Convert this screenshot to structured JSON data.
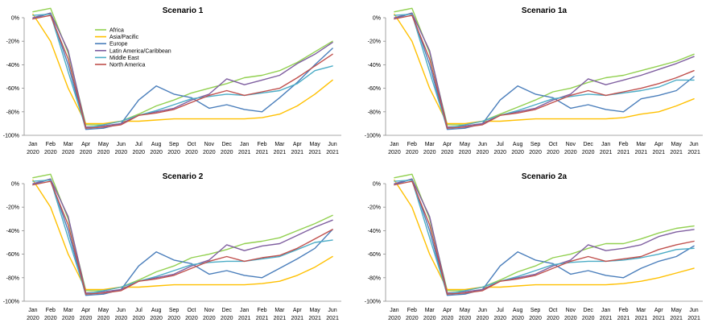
{
  "chart_data": [
    {
      "type": "line",
      "title": "Scenario 1",
      "categories": [
        "Jan 2020",
        "Feb 2020",
        "Mar 2020",
        "Apr 2020",
        "May 2020",
        "Jun 2020",
        "Jul 2020",
        "Aug 2020",
        "Sep 2020",
        "Oct 2020",
        "Nov 2020",
        "Dec 2020",
        "Jan 2021",
        "Feb 2021",
        "Mar 2021",
        "Apr 2021",
        "May 2021",
        "Jun 2021"
      ],
      "ylim": [
        -100,
        0
      ],
      "yticks": [
        "0%",
        "-20%",
        "-40%",
        "-60%",
        "-80%",
        "-100%"
      ],
      "legend": "top-left",
      "series": [
        {
          "name": "Africa",
          "color": "#92d050",
          "values": [
            5,
            8,
            -30,
            -91,
            -91,
            -88,
            -82,
            -75,
            -70,
            -64,
            -60,
            -56,
            -51,
            -49,
            -45,
            -38,
            -29,
            -20
          ]
        },
        {
          "name": "Asia/Pacific",
          "color": "#ffc000",
          "values": [
            3,
            -20,
            -60,
            -90,
            -90,
            -88,
            -88,
            -87,
            -86,
            -86,
            -86,
            -86,
            -86,
            -85,
            -82,
            -75,
            -65,
            -53
          ]
        },
        {
          "name": "Europe",
          "color": "#4a7ebb",
          "values": [
            -1,
            4,
            -40,
            -95,
            -94,
            -90,
            -70,
            -58,
            -65,
            -68,
            -77,
            -74,
            -78,
            -80,
            -68,
            -55,
            -40,
            -26
          ]
        },
        {
          "name": "Latin America/Caribbean",
          "color": "#7f5fa0",
          "values": [
            0,
            4,
            -28,
            -93,
            -92,
            -90,
            -83,
            -80,
            -77,
            -70,
            -65,
            -52,
            -57,
            -53,
            -49,
            -39,
            -31,
            -21
          ]
        },
        {
          "name": "Middle East",
          "color": "#4bacc6",
          "values": [
            2,
            3,
            -46,
            -94,
            -91,
            -88,
            -83,
            -79,
            -74,
            -69,
            -67,
            -65,
            -66,
            -64,
            -62,
            -56,
            -45,
            -41
          ]
        },
        {
          "name": "North America",
          "color": "#c0504d",
          "values": [
            -1,
            2,
            -35,
            -94,
            -93,
            -91,
            -83,
            -81,
            -78,
            -72,
            -66,
            -62,
            -66,
            -63,
            -60,
            -51,
            -41,
            -31
          ]
        }
      ]
    },
    {
      "type": "line",
      "title": "Scenario 1a",
      "categories": [
        "Jan 2020",
        "Feb 2020",
        "Mar 2020",
        "Apr 2020",
        "May 2020",
        "Jun 2020",
        "Jul 2020",
        "Aug 2020",
        "Sep 2020",
        "Oct 2020",
        "Nov 2020",
        "Dec 2020",
        "Jan 2021",
        "Feb 2021",
        "Mar 2021",
        "Apr 2021",
        "May 2021",
        "Jun 2021"
      ],
      "ylim": [
        -100,
        0
      ],
      "yticks": [
        "0%",
        "-20%",
        "-40%",
        "-60%",
        "-80%",
        "-100%"
      ],
      "series": [
        {
          "name": "Africa",
          "color": "#92d050",
          "values": [
            5,
            8,
            -30,
            -91,
            -91,
            -88,
            -82,
            -76,
            -70,
            -63,
            -60,
            -55,
            -51,
            -49,
            -45,
            -41,
            -37,
            -31
          ]
        },
        {
          "name": "Asia/Pacific",
          "color": "#ffc000",
          "values": [
            3,
            -20,
            -60,
            -90,
            -90,
            -88,
            -88,
            -87,
            -86,
            -86,
            -86,
            -86,
            -86,
            -85,
            -82,
            -80,
            -75,
            -69
          ]
        },
        {
          "name": "Europe",
          "color": "#4a7ebb",
          "values": [
            -1,
            4,
            -40,
            -95,
            -94,
            -90,
            -70,
            -58,
            -65,
            -68,
            -77,
            -74,
            -78,
            -80,
            -69,
            -66,
            -62,
            -50
          ]
        },
        {
          "name": "Latin America/Caribbean",
          "color": "#7f5fa0",
          "values": [
            0,
            4,
            -28,
            -93,
            -92,
            -90,
            -83,
            -80,
            -77,
            -70,
            -65,
            -52,
            -57,
            -53,
            -49,
            -44,
            -39,
            -33
          ]
        },
        {
          "name": "Middle East",
          "color": "#4bacc6",
          "values": [
            2,
            3,
            -46,
            -94,
            -91,
            -88,
            -83,
            -79,
            -74,
            -69,
            -67,
            -65,
            -66,
            -64,
            -62,
            -59,
            -53,
            -53
          ]
        },
        {
          "name": "North America",
          "color": "#c0504d",
          "values": [
            -1,
            2,
            -35,
            -94,
            -93,
            -91,
            -83,
            -81,
            -78,
            -72,
            -66,
            -62,
            -66,
            -63,
            -60,
            -56,
            -51,
            -45
          ]
        }
      ]
    },
    {
      "type": "line",
      "title": "Scenario 2",
      "categories": [
        "Jan 2020",
        "Feb 2020",
        "Mar 2020",
        "Apr 2020",
        "May 2020",
        "Jun 2020",
        "Jul 2020",
        "Aug 2020",
        "Sep 2020",
        "Oct 2020",
        "Nov 2020",
        "Dec 2020",
        "Jan 2021",
        "Feb 2021",
        "Mar 2021",
        "Apr 2021",
        "May 2021",
        "Jun 2021"
      ],
      "ylim": [
        -100,
        0
      ],
      "yticks": [
        "0%",
        "-20%",
        "-40%",
        "-60%",
        "-80%",
        "-100%"
      ],
      "series": [
        {
          "name": "Africa",
          "color": "#92d050",
          "values": [
            5,
            8,
            -30,
            -91,
            -91,
            -88,
            -82,
            -75,
            -70,
            -63,
            -60,
            -56,
            -51,
            -49,
            -46,
            -40,
            -34,
            -27
          ]
        },
        {
          "name": "Asia/Pacific",
          "color": "#ffc000",
          "values": [
            3,
            -20,
            -60,
            -90,
            -90,
            -88,
            -88,
            -87,
            -86,
            -86,
            -86,
            -86,
            -86,
            -85,
            -83,
            -78,
            -71,
            -62
          ]
        },
        {
          "name": "Europe",
          "color": "#4a7ebb",
          "values": [
            -1,
            4,
            -40,
            -95,
            -94,
            -90,
            -70,
            -58,
            -65,
            -68,
            -77,
            -74,
            -78,
            -80,
            -72,
            -64,
            -55,
            -39
          ]
        },
        {
          "name": "Latin America/Caribbean",
          "color": "#7f5fa0",
          "values": [
            0,
            4,
            -28,
            -93,
            -92,
            -90,
            -83,
            -80,
            -77,
            -70,
            -65,
            -52,
            -57,
            -53,
            -51,
            -44,
            -37,
            -31
          ]
        },
        {
          "name": "Middle East",
          "color": "#4bacc6",
          "values": [
            2,
            3,
            -46,
            -94,
            -91,
            -88,
            -83,
            -79,
            -74,
            -69,
            -67,
            -66,
            -66,
            -64,
            -62,
            -56,
            -50,
            -48
          ]
        },
        {
          "name": "North America",
          "color": "#c0504d",
          "values": [
            -1,
            2,
            -35,
            -94,
            -93,
            -91,
            -83,
            -81,
            -78,
            -72,
            -66,
            -62,
            -66,
            -63,
            -61,
            -55,
            -47,
            -39
          ]
        }
      ]
    },
    {
      "type": "line",
      "title": "Scenario 2a",
      "categories": [
        "Jan 2020",
        "Feb 2020",
        "Mar 2020",
        "Apr 2020",
        "May 2020",
        "Jun 2020",
        "Jul 2020",
        "Aug 2020",
        "Sep 2020",
        "Oct 2020",
        "Nov 2020",
        "Dec 2020",
        "Jan 2021",
        "Feb 2021",
        "Mar 2021",
        "Apr 2021",
        "May 2021",
        "Jun 2021"
      ],
      "ylim": [
        -100,
        0
      ],
      "yticks": [
        "0%",
        "-20%",
        "-40%",
        "-60%",
        "-80%",
        "-100%"
      ],
      "series": [
        {
          "name": "Africa",
          "color": "#92d050",
          "values": [
            5,
            8,
            -30,
            -91,
            -91,
            -88,
            -82,
            -75,
            -70,
            -63,
            -60,
            -55,
            -51,
            -51,
            -47,
            -42,
            -38,
            -36
          ]
        },
        {
          "name": "Asia/Pacific",
          "color": "#ffc000",
          "values": [
            3,
            -20,
            -60,
            -90,
            -90,
            -88,
            -88,
            -87,
            -86,
            -86,
            -86,
            -86,
            -86,
            -85,
            -83,
            -80,
            -76,
            -72
          ]
        },
        {
          "name": "Europe",
          "color": "#4a7ebb",
          "values": [
            -1,
            4,
            -40,
            -95,
            -94,
            -90,
            -70,
            -58,
            -65,
            -68,
            -77,
            -74,
            -78,
            -80,
            -72,
            -66,
            -62,
            -53
          ]
        },
        {
          "name": "Latin America/Caribbean",
          "color": "#7f5fa0",
          "values": [
            0,
            4,
            -28,
            -93,
            -92,
            -90,
            -83,
            -80,
            -77,
            -70,
            -65,
            -52,
            -57,
            -55,
            -52,
            -45,
            -41,
            -39
          ]
        },
        {
          "name": "Middle East",
          "color": "#4bacc6",
          "values": [
            2,
            3,
            -46,
            -94,
            -91,
            -88,
            -83,
            -79,
            -74,
            -69,
            -67,
            -66,
            -66,
            -65,
            -63,
            -60,
            -56,
            -55
          ]
        },
        {
          "name": "North America",
          "color": "#c0504d",
          "values": [
            -1,
            2,
            -35,
            -94,
            -93,
            -91,
            -83,
            -81,
            -78,
            -72,
            -66,
            -62,
            -66,
            -64,
            -62,
            -56,
            -52,
            -49
          ]
        }
      ]
    }
  ]
}
